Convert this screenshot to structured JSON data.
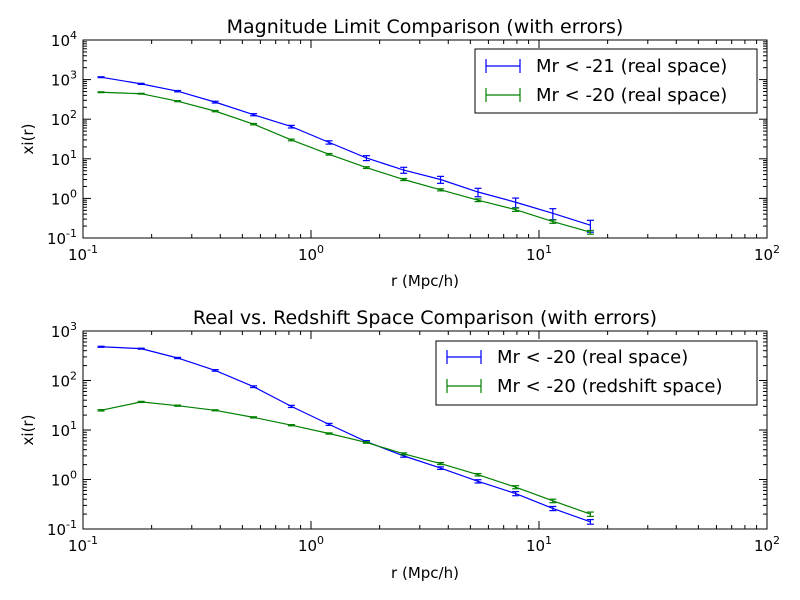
{
  "figure": {
    "background": "#ffffff"
  },
  "chart_data": [
    {
      "type": "line",
      "title": "Magnitude Limit Comparison (with errors)",
      "xlabel": "r (Mpc/h)",
      "ylabel": "xi(r)",
      "xscale": "log",
      "yscale": "log",
      "xlim": [
        0.1,
        100
      ],
      "ylim": [
        0.1,
        10000
      ],
      "x_tick_labels": [
        {
          "value": 0.1,
          "base": "10",
          "exp": "-1"
        },
        {
          "value": 1,
          "base": "10",
          "exp": "0"
        },
        {
          "value": 10,
          "base": "10",
          "exp": "1"
        },
        {
          "value": 100,
          "base": "10",
          "exp": "2"
        }
      ],
      "y_tick_labels": [
        {
          "value": 0.1,
          "base": "10",
          "exp": "-1"
        },
        {
          "value": 1,
          "base": "10",
          "exp": "0"
        },
        {
          "value": 10,
          "base": "10",
          "exp": "1"
        },
        {
          "value": 100,
          "base": "10",
          "exp": "2"
        },
        {
          "value": 1000,
          "base": "10",
          "exp": "3"
        },
        {
          "value": 10000,
          "base": "10",
          "exp": "4"
        }
      ],
      "grid": false,
      "legend_position": "top-right",
      "series": [
        {
          "name": "Mr < -21 (real space)",
          "color": "#0000ff",
          "x": [
            0.12,
            0.18,
            0.26,
            0.38,
            0.56,
            0.82,
            1.2,
            1.75,
            2.55,
            3.7,
            5.4,
            7.9,
            11.5,
            16.8
          ],
          "y": [
            1150,
            780,
            510,
            270,
            130,
            65,
            26,
            10.5,
            5.2,
            3.0,
            1.45,
            0.8,
            0.42,
            0.21
          ],
          "err": [
            30,
            25,
            20,
            14,
            8,
            5,
            2.5,
            1.5,
            0.9,
            0.6,
            0.35,
            0.22,
            0.13,
            0.07
          ]
        },
        {
          "name": "Mr < -20 (real space)",
          "color": "#008000",
          "x": [
            0.12,
            0.18,
            0.26,
            0.38,
            0.56,
            0.82,
            1.2,
            1.75,
            2.55,
            3.7,
            5.4,
            7.9,
            11.5,
            16.8
          ],
          "y": [
            480,
            440,
            285,
            160,
            75,
            30,
            13,
            6.0,
            3.0,
            1.65,
            0.9,
            0.52,
            0.26,
            0.14
          ],
          "err": [
            12,
            10,
            8,
            6,
            3,
            1.5,
            0.6,
            0.3,
            0.18,
            0.1,
            0.07,
            0.05,
            0.025,
            0.015
          ]
        }
      ]
    },
    {
      "type": "line",
      "title": "Real vs. Redshift Space Comparison (with errors)",
      "xlabel": "r (Mpc/h)",
      "ylabel": "xi(r)",
      "xscale": "log",
      "yscale": "log",
      "xlim": [
        0.1,
        100
      ],
      "ylim": [
        0.1,
        1000
      ],
      "x_tick_labels": [
        {
          "value": 0.1,
          "base": "10",
          "exp": "-1"
        },
        {
          "value": 1,
          "base": "10",
          "exp": "0"
        },
        {
          "value": 10,
          "base": "10",
          "exp": "1"
        },
        {
          "value": 100,
          "base": "10",
          "exp": "2"
        }
      ],
      "y_tick_labels": [
        {
          "value": 0.1,
          "base": "10",
          "exp": "-1"
        },
        {
          "value": 1,
          "base": "10",
          "exp": "0"
        },
        {
          "value": 10,
          "base": "10",
          "exp": "1"
        },
        {
          "value": 100,
          "base": "10",
          "exp": "2"
        },
        {
          "value": 1000,
          "base": "10",
          "exp": "3"
        }
      ],
      "grid": false,
      "legend_position": "top-right",
      "series": [
        {
          "name": "Mr < -20 (real space)",
          "color": "#0000ff",
          "x": [
            0.12,
            0.18,
            0.26,
            0.38,
            0.56,
            0.82,
            1.2,
            1.75,
            2.55,
            3.7,
            5.4,
            7.9,
            11.5,
            16.8
          ],
          "y": [
            480,
            440,
            285,
            160,
            75,
            30,
            13,
            5.8,
            3.0,
            1.7,
            0.92,
            0.52,
            0.26,
            0.14
          ],
          "err": [
            12,
            10,
            8,
            6,
            3,
            1.5,
            0.6,
            0.3,
            0.18,
            0.1,
            0.07,
            0.05,
            0.025,
            0.015
          ]
        },
        {
          "name": "Mr < -20 (redshift space)",
          "color": "#008000",
          "x": [
            0.12,
            0.18,
            0.26,
            0.38,
            0.56,
            0.82,
            1.2,
            1.75,
            2.55,
            3.7,
            5.4,
            7.9,
            11.5,
            16.8
          ],
          "y": [
            25,
            37,
            31,
            25,
            18,
            12.5,
            8.5,
            5.6,
            3.3,
            2.1,
            1.25,
            0.7,
            0.37,
            0.2
          ],
          "err": [
            0.8,
            0.9,
            0.8,
            0.6,
            0.5,
            0.35,
            0.25,
            0.2,
            0.15,
            0.1,
            0.07,
            0.05,
            0.03,
            0.02
          ]
        }
      ]
    }
  ]
}
